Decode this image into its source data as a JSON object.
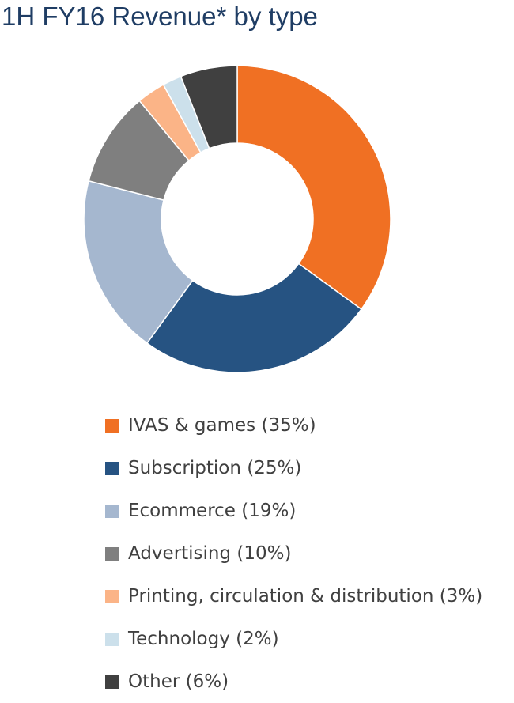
{
  "chart_data": {
    "type": "pie",
    "variant": "donut",
    "title": "1H FY16 Revenue* by type",
    "legend_position": "bottom",
    "categories": [
      "IVAS & games",
      "Subscription",
      "Ecommerce",
      "Advertising",
      "Printing, circulation & distribution",
      "Technology",
      "Other"
    ],
    "values": [
      35,
      25,
      19,
      10,
      3,
      2,
      6
    ],
    "legend_labels": [
      "IVAS & games (35%)",
      "Subscription (25%)",
      "Ecommerce (19%)",
      "Advertising (10%)",
      "Printing, circulation & distribution (3%)",
      "Technology (2%)",
      "Other (6%)"
    ],
    "colors": [
      "#f07023",
      "#265382",
      "#a5b7cf",
      "#7f7f7f",
      "#fbb487",
      "#cce0eb",
      "#404040"
    ]
  }
}
